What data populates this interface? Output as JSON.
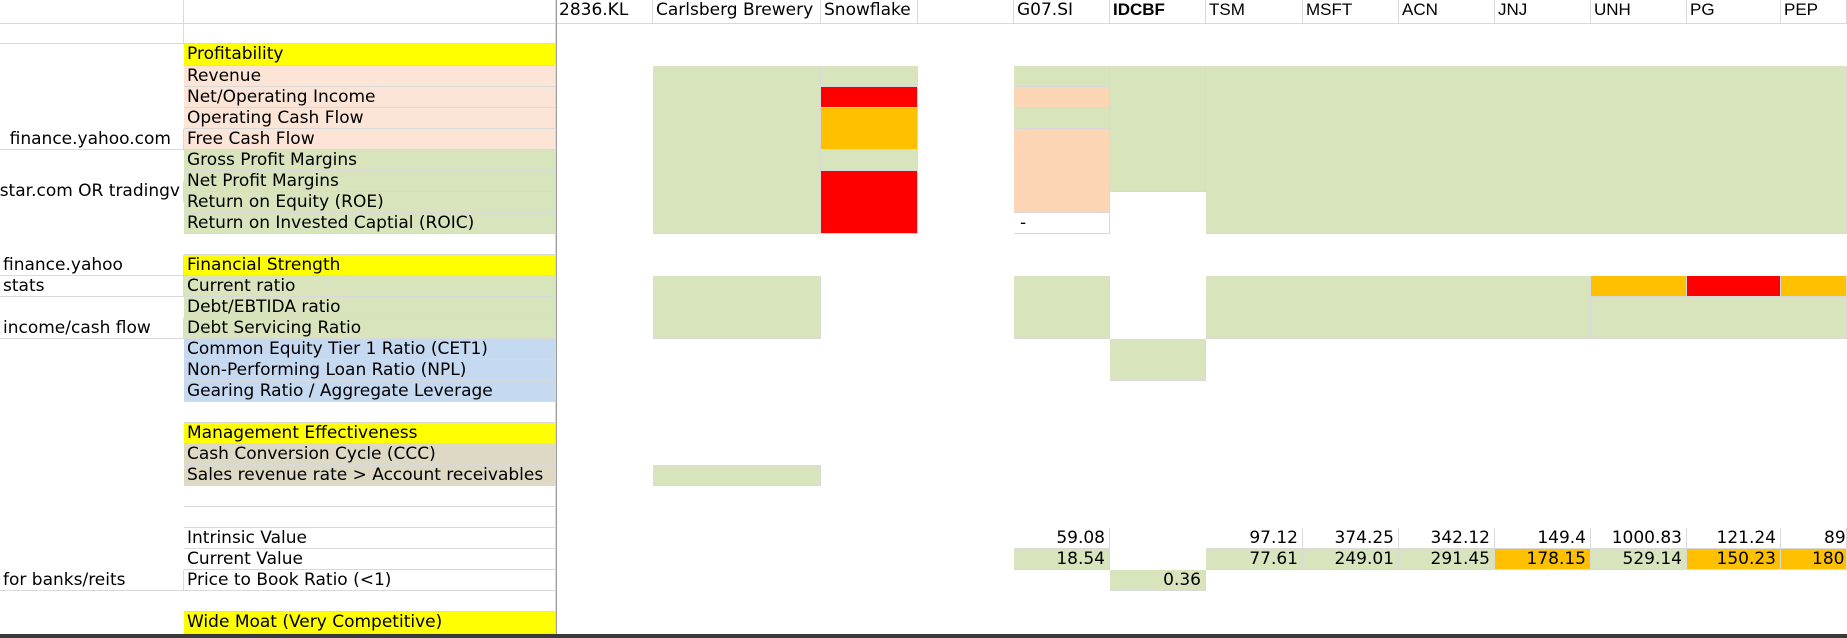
{
  "header": {
    "tickers": [
      "2836.KL",
      "Carlsberg Brewery",
      "Snowflake",
      "",
      "G07.SI",
      "IDCBF",
      "TSM",
      "MSFT",
      "ACN",
      "JNJ",
      "UNH",
      "PG",
      "PEP"
    ]
  },
  "side_labels": {
    "yahoo": "finance.yahoo.com",
    "morningstar": "gstar.com OR tradingv",
    "yahoo2": "finance.yahoo",
    "stats": "stats",
    "income": "income/cash flow",
    "banks": "for banks/reits"
  },
  "metrics": {
    "profitability": "Profitability",
    "revenue": "Revenue",
    "net_income": "Net/Operating Income",
    "op_cash_flow": "Operating Cash Flow",
    "free_cash_flow": "Free Cash Flow",
    "gross_margin": "Gross Profit Margins",
    "net_margin": "Net Profit Margins",
    "roe": "Return on Equity (ROE)",
    "roic": "Return on Invested Captial (ROIC)",
    "financial_strength": "Financial Strength",
    "current_ratio": "Current ratio",
    "debt_ebitda": "Debt/EBTIDA ratio",
    "debt_servicing": "Debt Servicing Ratio",
    "cet1": "Common Equity Tier 1 Ratio (CET1)",
    "npl": "Non-Performing Loan Ratio (NPL)",
    "gearing": "Gearing Ratio / Aggregate Leverage",
    "management": "Management Effectiveness",
    "ccc": "Cash Conversion Cycle (CCC)",
    "sales_rate": "Sales revenue rate > Account receivables",
    "intrinsic": "Intrinsic Value",
    "current_value": "Current Value",
    "ptb": "Price to Book Ratio (<1)",
    "wide_moat": "Wide Moat (Very Competitive)"
  },
  "values": {
    "g07_roic": "-",
    "intrinsic": {
      "g07": "59.08",
      "tsm": "97.12",
      "msft": "374.25",
      "acn": "342.12",
      "jnj": "149.4",
      "unh": "1000.83",
      "pg": "121.24",
      "pep": "89"
    },
    "current": {
      "g07": "18.54",
      "tsm": "77.61",
      "msft": "249.01",
      "acn": "291.45",
      "jnj": "178.15",
      "unh": "529.14",
      "pg": "150.23",
      "pep": "180"
    },
    "ptb": {
      "idcbf": "0.36"
    }
  },
  "colors": {
    "green": "#d8e4bc",
    "peach": "#fce4d6",
    "orange_light": "#fcd5b4",
    "yellow": "#ffff00",
    "red": "#ff0000",
    "orange": "#ffc000",
    "blue": "#c5d9f1",
    "tan": "#ddd9c4"
  }
}
